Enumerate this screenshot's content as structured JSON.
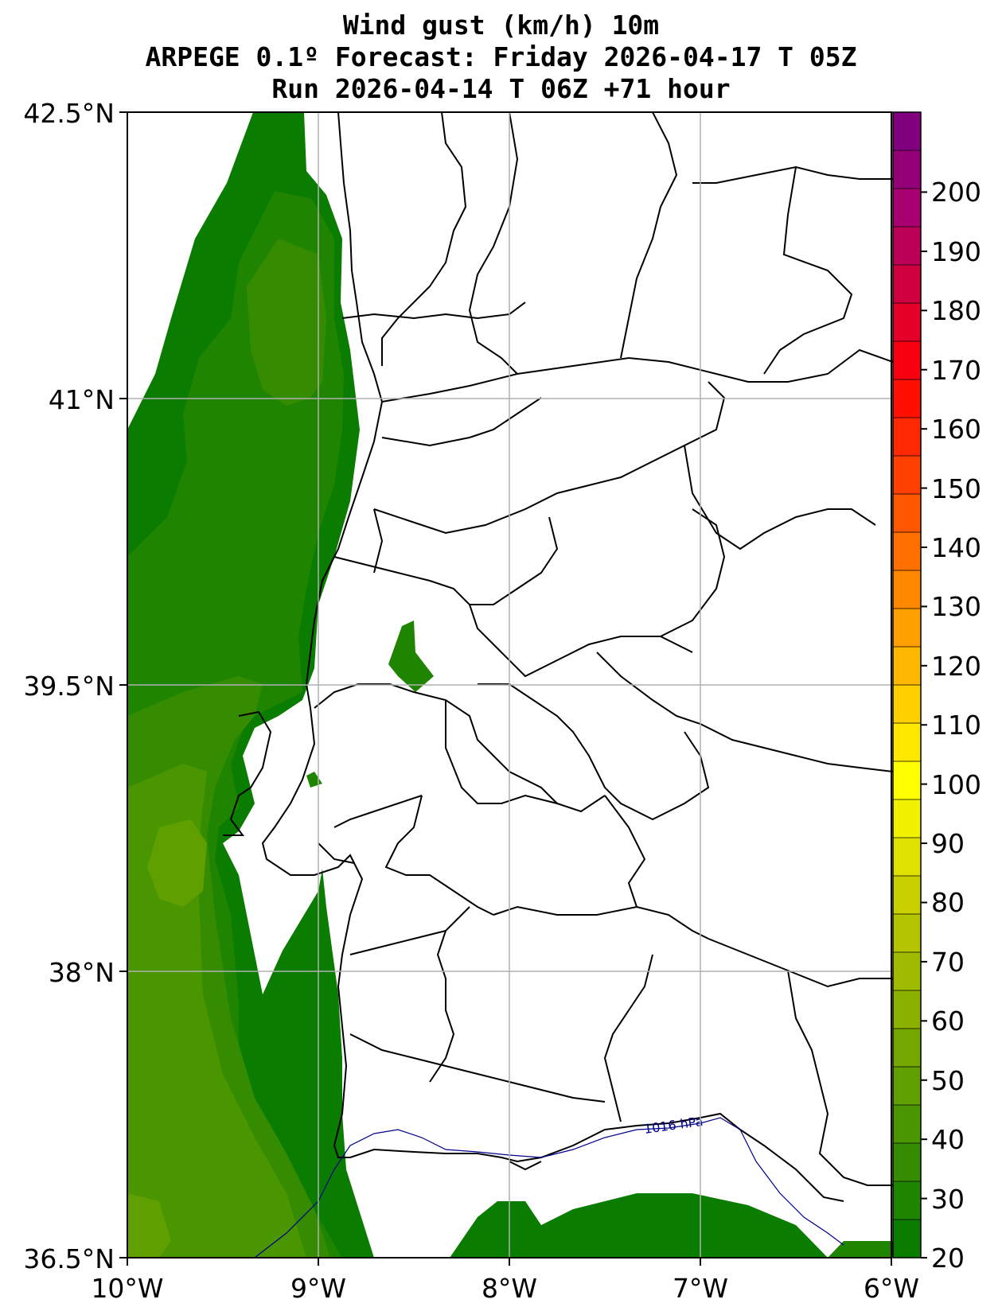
{
  "title": {
    "line1": "Wind gust (km/h) 10m",
    "line2": "ARPEGE 0.1º Forecast: Friday 2026-04-17 T 05Z",
    "line3": "Run 2026-04-14 T 06Z +71 hour"
  },
  "lat_labels": [
    "42.5°N",
    "41°N",
    "39.5°N",
    "38°N",
    "36.5°N"
  ],
  "lon_labels": [
    "10°W",
    "9°W",
    "8°W",
    "7°W",
    "6°W"
  ],
  "colorbar": {
    "ticks": [
      "20",
      "30",
      "40",
      "50",
      "60",
      "70",
      "80",
      "90",
      "100",
      "110",
      "120",
      "130",
      "140",
      "150",
      "160",
      "170",
      "180",
      "190",
      "200"
    ],
    "colors": [
      "#0a7c00",
      "#1f8400",
      "#358c00",
      "#4a9600",
      "#5f9f00",
      "#74a800",
      "#8ab100",
      "#9fbb00",
      "#b4c400",
      "#c9d000",
      "#dfe200",
      "#f2f200",
      "#ffff00",
      "#ffe800",
      "#ffd000",
      "#ffb800",
      "#ffa000",
      "#ff8800",
      "#ff7000",
      "#ff5800",
      "#ff4000",
      "#ff2800",
      "#ff1000",
      "#f80010",
      "#e40028",
      "#d00040",
      "#bc0058",
      "#a80070",
      "#940078",
      "#800080"
    ]
  },
  "isobar_label": "1016 hPa"
}
